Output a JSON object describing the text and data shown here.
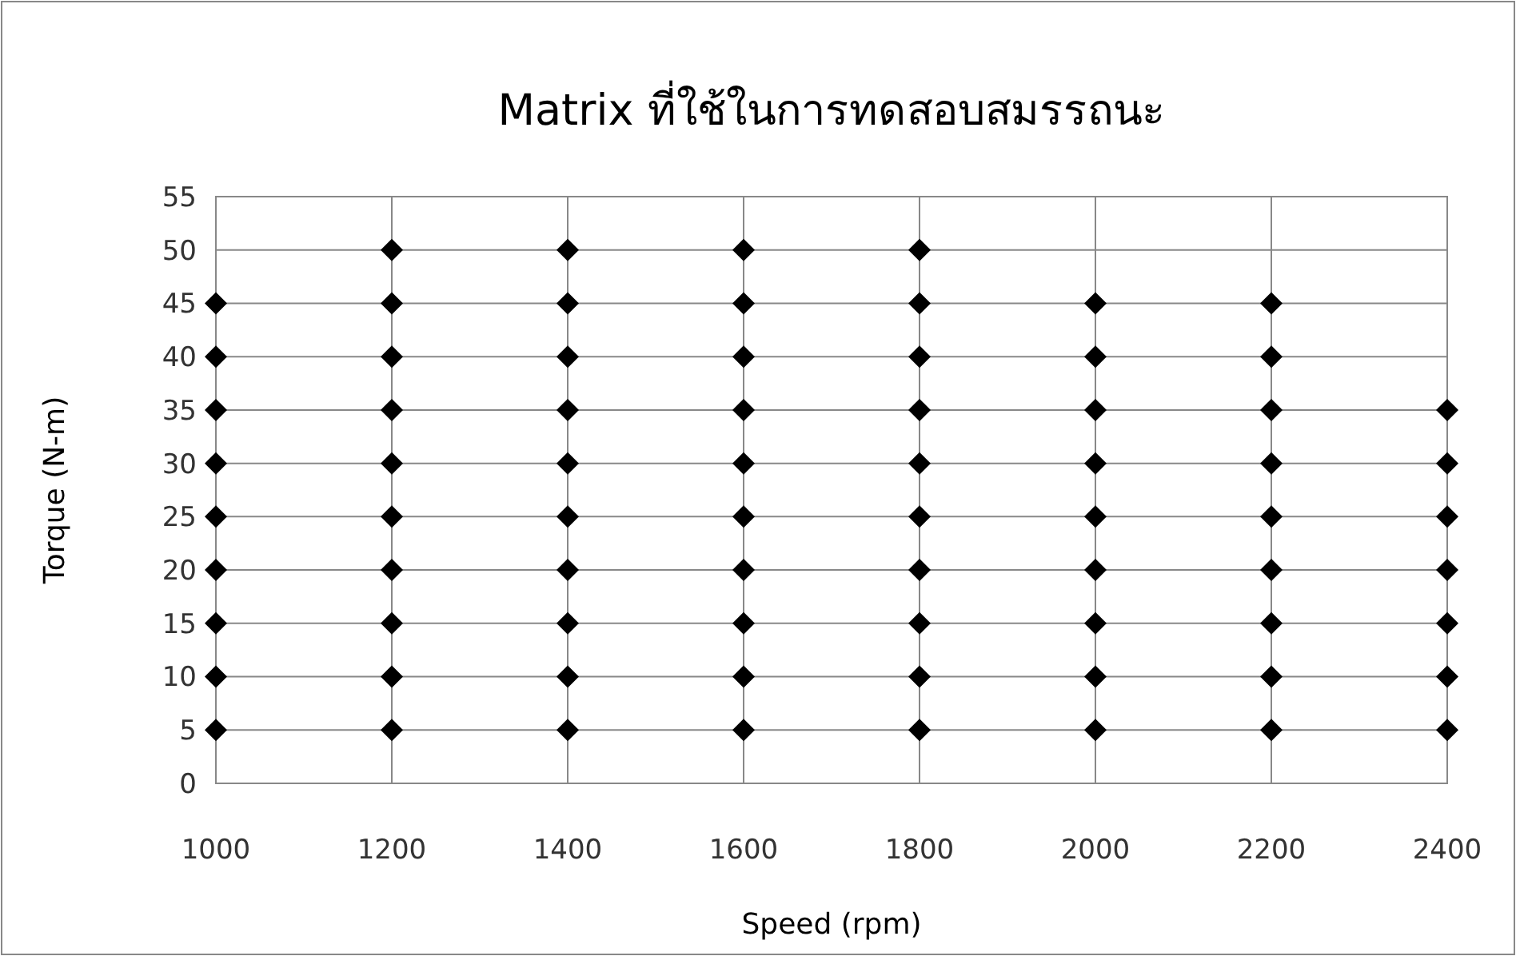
{
  "chart_data": {
    "type": "scatter",
    "title": "Matrix ที่ใช้ในการทดสอบสมรรถนะ",
    "xlabel": "Speed (rpm)",
    "ylabel": "Torque (N-m)",
    "xlim": [
      1000,
      2400
    ],
    "xticks": [
      1000,
      1200,
      1400,
      1600,
      1800,
      2000,
      2200,
      2400
    ],
    "ylim": [
      0,
      55
    ],
    "yticks": [
      0,
      5,
      10,
      15,
      20,
      25,
      30,
      35,
      40,
      45,
      50,
      55
    ],
    "grid": true,
    "marker": "diamond",
    "series": [
      {
        "color": "#000000",
        "x": [
          1000,
          1000,
          1000,
          1000,
          1000,
          1000,
          1000,
          1000,
          1000,
          1200,
          1200,
          1200,
          1200,
          1200,
          1200,
          1200,
          1200,
          1200,
          1200,
          1400,
          1400,
          1400,
          1400,
          1400,
          1400,
          1400,
          1400,
          1400,
          1400,
          1600,
          1600,
          1600,
          1600,
          1600,
          1600,
          1600,
          1600,
          1600,
          1600,
          1800,
          1800,
          1800,
          1800,
          1800,
          1800,
          1800,
          1800,
          1800,
          1800,
          2000,
          2000,
          2000,
          2000,
          2000,
          2000,
          2000,
          2000,
          2000,
          2200,
          2200,
          2200,
          2200,
          2200,
          2200,
          2200,
          2200,
          2200,
          2400,
          2400,
          2400,
          2400,
          2400,
          2400,
          2400
        ],
        "values": [
          5,
          10,
          15,
          20,
          25,
          30,
          35,
          40,
          45,
          5,
          10,
          15,
          20,
          25,
          30,
          35,
          40,
          45,
          50,
          5,
          10,
          15,
          20,
          25,
          30,
          35,
          40,
          45,
          50,
          5,
          10,
          15,
          20,
          25,
          30,
          35,
          40,
          45,
          50,
          5,
          10,
          15,
          20,
          25,
          30,
          35,
          40,
          45,
          50,
          5,
          10,
          15,
          20,
          25,
          30,
          35,
          40,
          45,
          5,
          10,
          15,
          20,
          25,
          30,
          35,
          40,
          45,
          5,
          10,
          15,
          20,
          25,
          30,
          35
        ]
      }
    ]
  }
}
